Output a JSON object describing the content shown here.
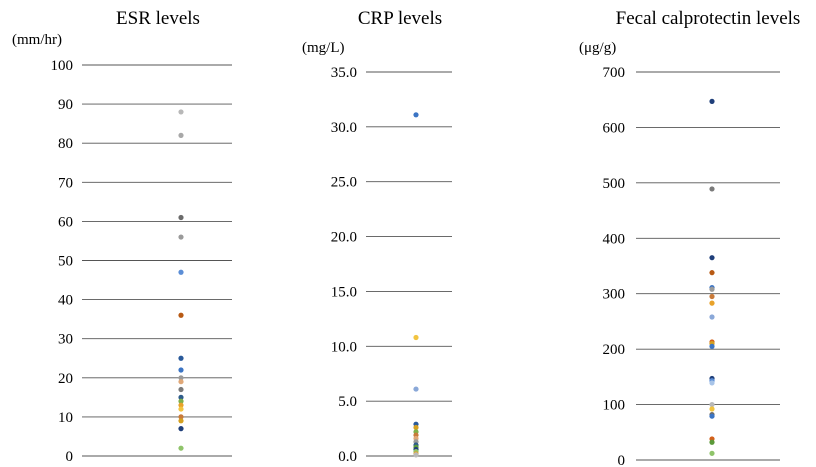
{
  "chart_data": [
    {
      "type": "scatter",
      "title": "ESR levels",
      "ylabel": "(mm/hr)",
      "ylim": [
        0,
        100
      ],
      "yticks": [
        "0",
        "10",
        "20",
        "30",
        "40",
        "50",
        "60",
        "70",
        "80",
        "90",
        "100"
      ],
      "grid": true,
      "points": [
        {
          "y": 88,
          "color": "#b8b8b8"
        },
        {
          "y": 82,
          "color": "#a8a8a8"
        },
        {
          "y": 61,
          "color": "#6b6b6b"
        },
        {
          "y": 56,
          "color": "#9a9a9a"
        },
        {
          "y": 47,
          "color": "#5b8ed6"
        },
        {
          "y": 36,
          "color": "#b85a14"
        },
        {
          "y": 25,
          "color": "#2a5a9a"
        },
        {
          "y": 22,
          "color": "#3b74c4"
        },
        {
          "y": 20,
          "color": "#9a9a9a"
        },
        {
          "y": 19,
          "color": "#e0a878"
        },
        {
          "y": 17,
          "color": "#7a7a7a"
        },
        {
          "y": 15,
          "color": "#2e5c8a"
        },
        {
          "y": 14,
          "color": "#7fb04a"
        },
        {
          "y": 13,
          "color": "#e8a22a"
        },
        {
          "y": 12,
          "color": "#f2c440"
        },
        {
          "y": 10,
          "color": "#c97a3a"
        },
        {
          "y": 9,
          "color": "#d4a020"
        },
        {
          "y": 7,
          "color": "#1f3f7a"
        },
        {
          "y": 2,
          "color": "#8fc46a"
        }
      ]
    },
    {
      "type": "scatter",
      "title": "CRP levels",
      "ylabel": "(mg/L)",
      "ylim": [
        0,
        35
      ],
      "yticks": [
        "0.0",
        "5.0",
        "10.0",
        "15.0",
        "20.0",
        "25.0",
        "30.0",
        "35.0"
      ],
      "grid": true,
      "points": [
        {
          "y": 31.1,
          "color": "#3b74c4"
        },
        {
          "y": 10.8,
          "color": "#f2c440"
        },
        {
          "y": 6.1,
          "color": "#8aa8d8"
        },
        {
          "y": 2.9,
          "color": "#2a5a9a"
        },
        {
          "y": 2.6,
          "color": "#d4a020"
        },
        {
          "y": 2.2,
          "color": "#7fb04a"
        },
        {
          "y": 1.9,
          "color": "#c97a3a"
        },
        {
          "y": 1.6,
          "color": "#e0a878"
        },
        {
          "y": 1.3,
          "color": "#9a9a9a"
        },
        {
          "y": 1.0,
          "color": "#2e5c8a"
        },
        {
          "y": 0.8,
          "color": "#5b9a3a"
        },
        {
          "y": 0.6,
          "color": "#1f3f7a"
        },
        {
          "y": 0.4,
          "color": "#8fc46a"
        },
        {
          "y": 0.2,
          "color": "#e8a22a"
        },
        {
          "y": 0.1,
          "color": "#b8b8b8"
        }
      ]
    },
    {
      "type": "scatter",
      "title": "Fecal calprotectin levels",
      "ylabel": "(μg/g)",
      "ylim": [
        0,
        700
      ],
      "yticks": [
        "0",
        "100",
        "200",
        "300",
        "400",
        "500",
        "600",
        "700"
      ],
      "grid": true,
      "points": [
        {
          "y": 647,
          "color": "#1f3f7a"
        },
        {
          "y": 489,
          "color": "#7a7a7a"
        },
        {
          "y": 365,
          "color": "#1f3f7a"
        },
        {
          "y": 338,
          "color": "#b85a14"
        },
        {
          "y": 311,
          "color": "#3b74c4"
        },
        {
          "y": 308,
          "color": "#9a9a9a"
        },
        {
          "y": 295,
          "color": "#c97a3a"
        },
        {
          "y": 283,
          "color": "#e8a22a"
        },
        {
          "y": 258,
          "color": "#8aa8d8"
        },
        {
          "y": 213,
          "color": "#d4601a"
        },
        {
          "y": 210,
          "color": "#d4a020"
        },
        {
          "y": 205,
          "color": "#3b74c4"
        },
        {
          "y": 147,
          "color": "#1f3f7a"
        },
        {
          "y": 143,
          "color": "#5b8ed6"
        },
        {
          "y": 139,
          "color": "#a8c4e8"
        },
        {
          "y": 100,
          "color": "#b8b8b8"
        },
        {
          "y": 92,
          "color": "#f2c440"
        },
        {
          "y": 82,
          "color": "#6b6b6b"
        },
        {
          "y": 79,
          "color": "#3b74c4"
        },
        {
          "y": 38,
          "color": "#d4601a"
        },
        {
          "y": 32,
          "color": "#5b9a3a"
        },
        {
          "y": 12,
          "color": "#8fc46a"
        }
      ]
    }
  ]
}
